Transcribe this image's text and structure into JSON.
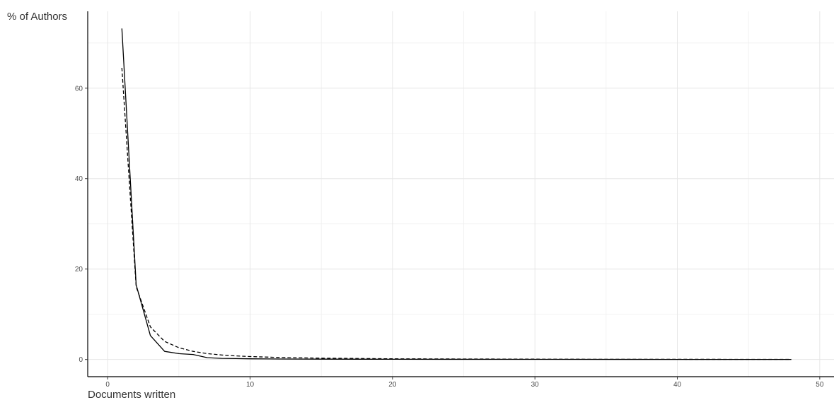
{
  "chart_data": {
    "type": "line",
    "title": "",
    "xlabel": "Documents written",
    "ylabel": "% of Authors",
    "xlim": [
      -1.4,
      51
    ],
    "ylim": [
      -3.8,
      77
    ],
    "x_ticks": [
      0,
      10,
      20,
      30,
      40,
      50
    ],
    "y_ticks": [
      0,
      20,
      40,
      60
    ],
    "grid": true,
    "legend": "none",
    "series": [
      {
        "style": "solid",
        "color": "#000000",
        "points": [
          [
            1,
            73.2
          ],
          [
            2,
            16.5
          ],
          [
            3,
            5.3
          ],
          [
            4,
            1.8
          ],
          [
            5,
            1.3
          ],
          [
            6,
            1.1
          ],
          [
            7,
            0.4
          ],
          [
            8,
            0.25
          ],
          [
            9,
            0.2
          ],
          [
            10,
            0.15
          ],
          [
            12,
            0.1
          ],
          [
            15,
            0.08
          ],
          [
            20,
            0.05
          ],
          [
            30,
            0.03
          ],
          [
            40,
            0.02
          ],
          [
            48,
            0.01
          ]
        ]
      },
      {
        "style": "dashed",
        "color": "#000000",
        "points": [
          [
            1,
            64.5
          ],
          [
            2,
            16.1
          ],
          [
            3,
            7.2
          ],
          [
            4,
            4.0
          ],
          [
            5,
            2.6
          ],
          [
            6,
            1.8
          ],
          [
            7,
            1.3
          ],
          [
            8,
            1.0
          ],
          [
            9,
            0.8
          ],
          [
            10,
            0.65
          ],
          [
            12,
            0.45
          ],
          [
            15,
            0.29
          ],
          [
            20,
            0.16
          ],
          [
            25,
            0.1
          ],
          [
            30,
            0.07
          ],
          [
            35,
            0.05
          ],
          [
            40,
            0.04
          ],
          [
            45,
            0.03
          ],
          [
            48,
            0.03
          ]
        ]
      }
    ]
  }
}
